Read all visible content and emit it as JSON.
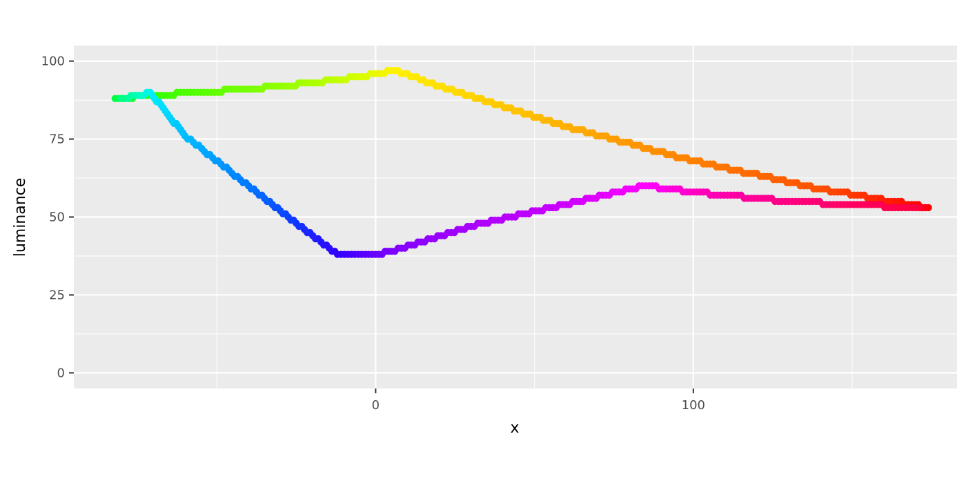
{
  "chart_data": {
    "type": "scatter",
    "xlabel": "x",
    "ylabel": "luminance",
    "x_ticks": [
      0,
      100
    ],
    "y_ticks": [
      0,
      25,
      50,
      75,
      100
    ],
    "xlim": [
      -95,
      183
    ],
    "ylim": [
      -5,
      105
    ],
    "grid": true,
    "legend": "none",
    "color_encoding": "hue gradient (rainbow)",
    "anchors": [
      {
        "x": -82,
        "y": 88,
        "color": "#00ff44"
      },
      {
        "x": -70,
        "y": 89,
        "color": "#33ff00"
      },
      {
        "x": -40,
        "y": 91,
        "color": "#77ff00"
      },
      {
        "x": -20,
        "y": 93,
        "color": "#aaff00"
      },
      {
        "x": -5,
        "y": 95,
        "color": "#d5ff00"
      },
      {
        "x": 6,
        "y": 97,
        "color": "#fff200"
      },
      {
        "x": 20,
        "y": 92,
        "color": "#ffe000"
      },
      {
        "x": 60,
        "y": 79,
        "color": "#ffb000"
      },
      {
        "x": 100,
        "y": 68,
        "color": "#ff8000"
      },
      {
        "x": 140,
        "y": 59,
        "color": "#ff5000"
      },
      {
        "x": 174,
        "y": 53,
        "color": "#ff0000"
      },
      {
        "x": 170,
        "y": 53,
        "color": "#ff0040"
      },
      {
        "x": 130,
        "y": 55,
        "color": "#ff0080"
      },
      {
        "x": 100,
        "y": 58,
        "color": "#ff00c0"
      },
      {
        "x": 85,
        "y": 60,
        "color": "#ff00ff"
      },
      {
        "x": 60,
        "y": 54,
        "color": "#cc00ff"
      },
      {
        "x": 30,
        "y": 47,
        "color": "#aa00ff"
      },
      {
        "x": 5,
        "y": 39,
        "color": "#8000ff"
      },
      {
        "x": 0,
        "y": 38,
        "color": "#6a00ff"
      },
      {
        "x": -12,
        "y": 38,
        "color": "#3300ff"
      },
      {
        "x": -25,
        "y": 48,
        "color": "#1133ff"
      },
      {
        "x": -40,
        "y": 60,
        "color": "#0077ff"
      },
      {
        "x": -60,
        "y": 76,
        "color": "#00bbff"
      },
      {
        "x": -71,
        "y": 90,
        "color": "#00eeff"
      },
      {
        "x": -74,
        "y": 89,
        "color": "#00ffcc"
      },
      {
        "x": -80,
        "y": 88,
        "color": "#00ff88"
      }
    ]
  }
}
